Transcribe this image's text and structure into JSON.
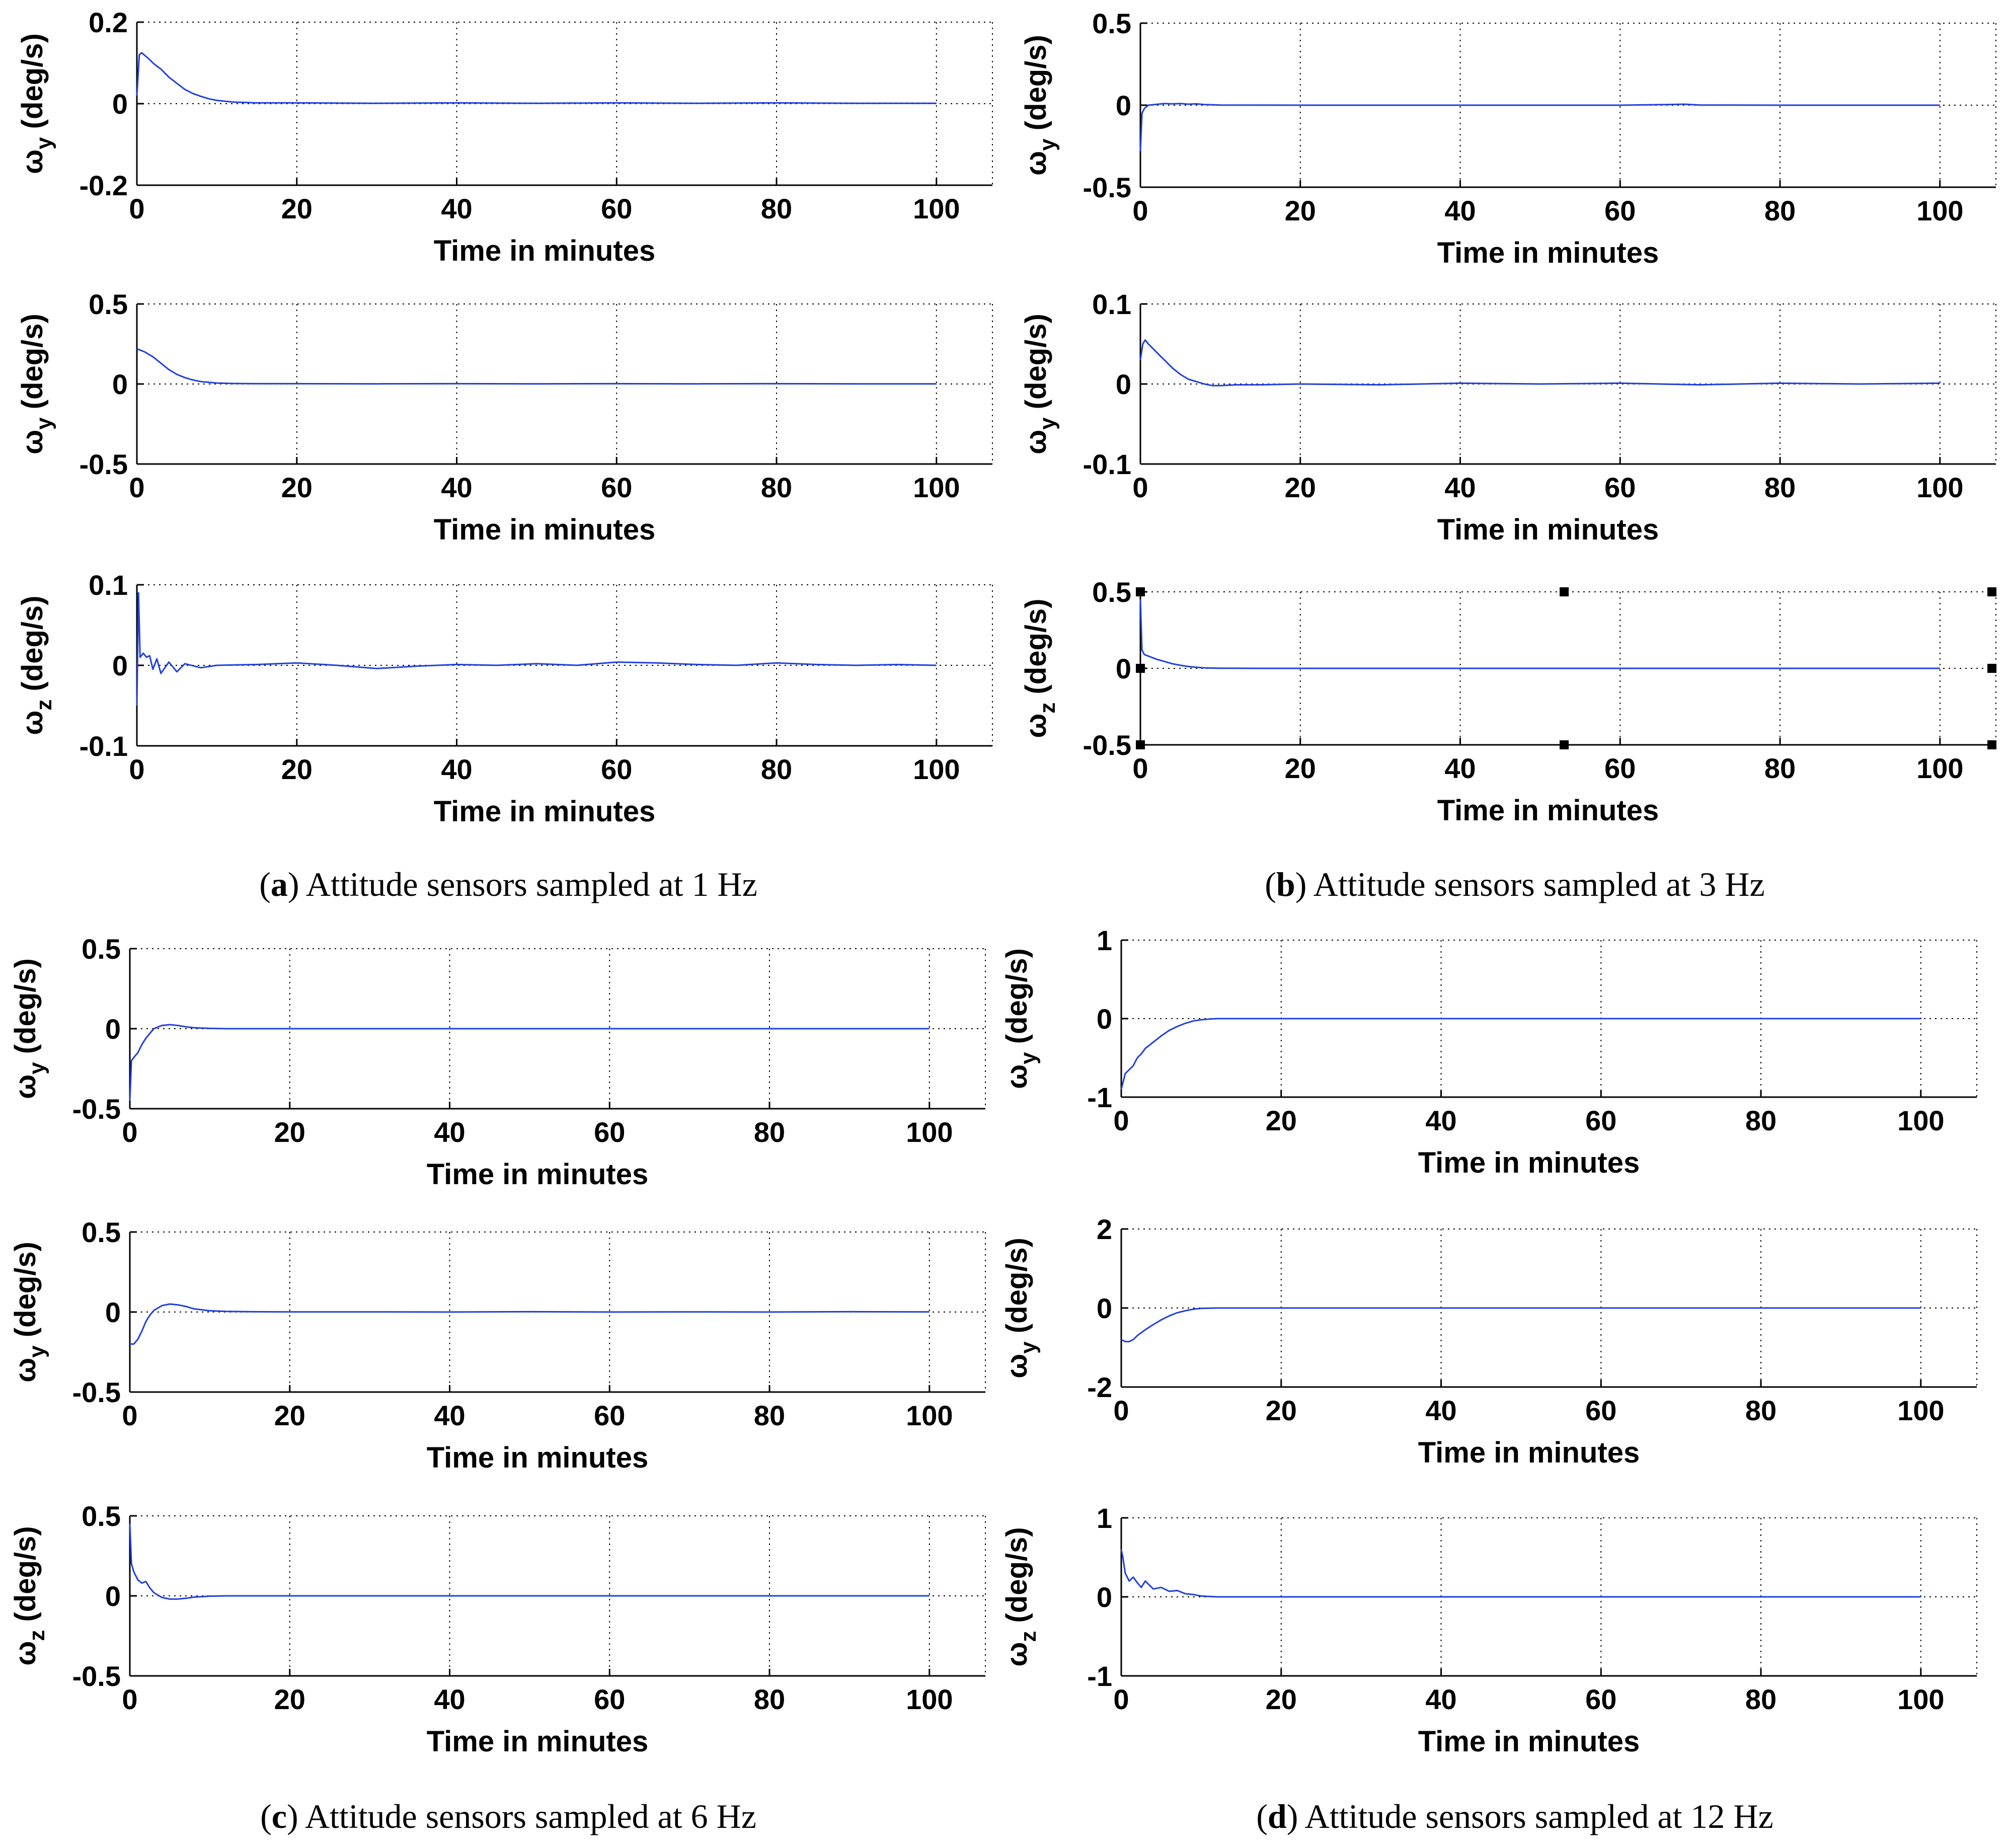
{
  "figure": {
    "captions": [
      {
        "letter": "a",
        "text": "Attitude sensors sampled at 1 Hz"
      },
      {
        "letter": "b",
        "text": "Attitude sensors sampled at 3 Hz"
      },
      {
        "letter": "c",
        "text": "Attitude sensors sampled at 6 Hz"
      },
      {
        "letter": "d",
        "text": "Attitude sensors sampled at 12 Hz"
      }
    ]
  },
  "chart_data": [
    {
      "type": "line",
      "panel": "a",
      "row": 1,
      "title": "",
      "xlabel": "Time in minutes",
      "ylabel": "ω_y (deg/s)",
      "ylabel_symbol": "ω",
      "ylabel_sub": "y",
      "ylabel_unit": "(deg/s)",
      "xlim": [
        0,
        107
      ],
      "ylim": [
        -0.2,
        0.2
      ],
      "xticks": [
        "0",
        "20",
        "40",
        "60",
        "80",
        "100"
      ],
      "yticks": [
        "0.2",
        "0",
        "-0.2"
      ],
      "grid": true,
      "series": [
        {
          "color": "#1f3fe0",
          "x": [
            0,
            0.3,
            0.6,
            1,
            1.5,
            2,
            2.5,
            3,
            4,
            5,
            6,
            7,
            8,
            9,
            10,
            12,
            15,
            20,
            30,
            40,
            50,
            60,
            70,
            80,
            90,
            100
          ],
          "y": [
            0.02,
            0.12,
            0.125,
            0.118,
            0.11,
            0.1,
            0.092,
            0.085,
            0.065,
            0.05,
            0.035,
            0.025,
            0.018,
            0.012,
            0.008,
            0.004,
            0.002,
            0.002,
            0.001,
            0.002,
            0.001,
            0.002,
            0.001,
            0.002,
            0.001,
            0.001
          ]
        }
      ]
    },
    {
      "type": "line",
      "panel": "a",
      "row": 2,
      "title": "",
      "xlabel": "Time in minutes",
      "ylabel": "ω_y (deg/s)",
      "ylabel_symbol": "ω",
      "ylabel_sub": "y",
      "ylabel_unit": "(deg/s)",
      "xlim": [
        0,
        107
      ],
      "ylim": [
        -0.5,
        0.5
      ],
      "xticks": [
        "0",
        "20",
        "40",
        "60",
        "80",
        "100"
      ],
      "yticks": [
        "0.5",
        "0",
        "-0.5"
      ],
      "grid": true,
      "series": [
        {
          "color": "#1f3fe0",
          "x": [
            0,
            0.5,
            1,
            2,
            3,
            4,
            5,
            6,
            7,
            8,
            10,
            12,
            15,
            20,
            30,
            40,
            50,
            60,
            70,
            80,
            90,
            100
          ],
          "y": [
            0.22,
            0.21,
            0.2,
            0.17,
            0.13,
            0.09,
            0.06,
            0.04,
            0.025,
            0.015,
            0.006,
            0.003,
            0.002,
            0.002,
            0.001,
            0.002,
            0.001,
            0.002,
            0.001,
            0.002,
            0.001,
            0.001
          ]
        }
      ]
    },
    {
      "type": "line",
      "panel": "a",
      "row": 3,
      "title": "",
      "xlabel": "Time in minutes",
      "ylabel": "ω_z (deg/s)",
      "ylabel_symbol": "ω",
      "ylabel_sub": "z",
      "ylabel_unit": "(deg/s)",
      "xlim": [
        0,
        107
      ],
      "ylim": [
        -0.1,
        0.1
      ],
      "xticks": [
        "0",
        "20",
        "40",
        "60",
        "80",
        "100"
      ],
      "yticks": [
        "0.1",
        "0",
        "-0.1"
      ],
      "grid": true,
      "series": [
        {
          "color": "#1f3fe0",
          "x": [
            0,
            0.2,
            0.4,
            0.8,
            1.2,
            1.6,
            2,
            2.5,
            3,
            4,
            5,
            6,
            8,
            10,
            15,
            20,
            25,
            30,
            35,
            40,
            45,
            50,
            55,
            60,
            65,
            70,
            75,
            80,
            85,
            90,
            95,
            100
          ],
          "y": [
            -0.05,
            0.09,
            0.01,
            0.015,
            0.01,
            0.012,
            -0.005,
            0.008,
            -0.01,
            0.004,
            -0.008,
            0.002,
            -0.003,
            0.0,
            0.001,
            0.003,
            0.0,
            -0.004,
            -0.001,
            0.001,
            0.0,
            0.002,
            0.0,
            0.004,
            0.003,
            0.001,
            0.0,
            0.003,
            0.001,
            0.0,
            0.001,
            0.0
          ]
        }
      ]
    },
    {
      "type": "line",
      "panel": "b",
      "row": 1,
      "title": "",
      "xlabel": "Time in minutes",
      "ylabel": "ω_y (deg/s)",
      "ylabel_symbol": "ω",
      "ylabel_sub": "y",
      "ylabel_unit": "(deg/s)",
      "xlim": [
        0,
        107
      ],
      "ylim": [
        -0.5,
        0.5
      ],
      "xticks": [
        "0",
        "20",
        "40",
        "60",
        "80",
        "100"
      ],
      "yticks": [
        "0.5",
        "0",
        "-0.5"
      ],
      "grid": true,
      "series": [
        {
          "color": "#1f3fe0",
          "x": [
            0,
            0.2,
            0.5,
            1,
            2,
            3,
            4,
            5,
            6,
            7,
            8,
            10,
            20,
            40,
            60,
            66,
            68,
            70,
            80,
            100
          ],
          "y": [
            -0.28,
            -0.05,
            -0.02,
            0.0,
            0.005,
            0.01,
            0.008,
            0.01,
            0.006,
            0.008,
            0.004,
            0.001,
            0.0,
            0.0,
            0.0,
            0.004,
            0.006,
            0.001,
            0.0,
            0.0
          ]
        }
      ]
    },
    {
      "type": "line",
      "panel": "b",
      "row": 2,
      "title": "",
      "xlabel": "Time in minutes",
      "ylabel": "ω_y (deg/s)",
      "ylabel_symbol": "ω",
      "ylabel_sub": "y",
      "ylabel_unit": "(deg/s)",
      "xlim": [
        0,
        107
      ],
      "ylim": [
        -0.1,
        0.1
      ],
      "xticks": [
        "0",
        "20",
        "40",
        "60",
        "80",
        "100"
      ],
      "yticks": [
        "0.1",
        "0",
        "-0.1"
      ],
      "grid": true,
      "series": [
        {
          "color": "#1f3fe0",
          "x": [
            0,
            0.3,
            0.6,
            1,
            1.5,
            2,
            2.5,
            3,
            4,
            5,
            6,
            7,
            8,
            9,
            10,
            12,
            15,
            20,
            30,
            40,
            50,
            60,
            70,
            80,
            90,
            100
          ],
          "y": [
            0.03,
            0.05,
            0.055,
            0.05,
            0.045,
            0.04,
            0.035,
            0.03,
            0.02,
            0.012,
            0.006,
            0.003,
            0.0,
            -0.002,
            -0.002,
            -0.001,
            -0.001,
            0.0,
            -0.001,
            0.001,
            0.0,
            0.001,
            -0.001,
            0.001,
            0.0,
            0.001
          ]
        }
      ]
    },
    {
      "type": "line",
      "panel": "b",
      "row": 3,
      "title": "",
      "xlabel": "Time in minutes",
      "ylabel": "ω_z (deg/s)",
      "ylabel_symbol": "ω",
      "ylabel_sub": "z",
      "ylabel_unit": "(deg/s)",
      "xlim": [
        0,
        107
      ],
      "ylim": [
        -0.5,
        0.5
      ],
      "xticks": [
        "0",
        "20",
        "40",
        "60",
        "80",
        "100"
      ],
      "yticks": [
        "0.5",
        "0",
        "-0.5"
      ],
      "grid": true,
      "series": [
        {
          "color": "#1f3fe0",
          "x": [
            0,
            0.2,
            0.5,
            1,
            2,
            3,
            4,
            5,
            6,
            7,
            8,
            10,
            15,
            20,
            100
          ],
          "y": [
            0.45,
            0.12,
            0.09,
            0.08,
            0.06,
            0.045,
            0.03,
            0.02,
            0.012,
            0.007,
            0.003,
            0.001,
            0.0,
            0.0,
            0.0
          ]
        }
      ],
      "markers": [
        {
          "x": 0,
          "y": 0.5
        },
        {
          "x": 53,
          "y": 0.5
        },
        {
          "x": 106.5,
          "y": 0.5
        },
        {
          "x": 0,
          "y": 0
        },
        {
          "x": 106.5,
          "y": 0
        },
        {
          "x": 0,
          "y": -0.5
        },
        {
          "x": 53,
          "y": -0.5
        },
        {
          "x": 106.5,
          "y": -0.5
        }
      ]
    },
    {
      "type": "line",
      "panel": "c",
      "row": 1,
      "title": "",
      "xlabel": "Time in minutes",
      "ylabel": "ω_y (deg/s)",
      "ylabel_symbol": "ω",
      "ylabel_sub": "y",
      "ylabel_unit": "(deg/s)",
      "xlim": [
        0,
        107
      ],
      "ylim": [
        -0.5,
        0.5
      ],
      "xticks": [
        "0",
        "20",
        "40",
        "60",
        "80",
        "100"
      ],
      "yticks": [
        "0.5",
        "0",
        "-0.5"
      ],
      "grid": true,
      "series": [
        {
          "color": "#1f3fe0",
          "x": [
            0,
            0.2,
            0.5,
            1,
            1.5,
            2,
            2.5,
            3,
            4,
            5,
            6,
            7,
            8,
            10,
            12,
            15,
            20,
            100
          ],
          "y": [
            -0.45,
            -0.2,
            -0.18,
            -0.15,
            -0.1,
            -0.06,
            -0.03,
            0.0,
            0.02,
            0.025,
            0.02,
            0.012,
            0.006,
            0.002,
            0.0,
            0.0,
            0.0,
            0.0
          ]
        }
      ]
    },
    {
      "type": "line",
      "panel": "c",
      "row": 2,
      "title": "",
      "xlabel": "Time in minutes",
      "ylabel": "ω_y (deg/s)",
      "ylabel_symbol": "ω",
      "ylabel_sub": "y",
      "ylabel_unit": "(deg/s)",
      "xlim": [
        0,
        107
      ],
      "ylim": [
        -0.5,
        0.5
      ],
      "xticks": [
        "0",
        "20",
        "40",
        "60",
        "80",
        "100"
      ],
      "yticks": [
        "0.5",
        "0",
        "-0.5"
      ],
      "grid": true,
      "series": [
        {
          "color": "#1f3fe0",
          "x": [
            0,
            0.5,
            1,
            1.5,
            2,
            2.5,
            3,
            4,
            5,
            6,
            7,
            8,
            10,
            12,
            15,
            20,
            30,
            40,
            50,
            60,
            70,
            80,
            90,
            100
          ],
          "y": [
            -0.2,
            -0.2,
            -0.17,
            -0.12,
            -0.06,
            -0.02,
            0.01,
            0.04,
            0.05,
            0.045,
            0.035,
            0.02,
            0.008,
            0.004,
            0.002,
            0.001,
            0.001,
            0.0,
            0.002,
            0.0,
            0.001,
            0.0,
            0.002,
            0.001
          ]
        }
      ]
    },
    {
      "type": "line",
      "panel": "c",
      "row": 3,
      "title": "",
      "xlabel": "Time in minutes",
      "ylabel": "ω_z (deg/s)",
      "ylabel_symbol": "ω",
      "ylabel_sub": "z",
      "ylabel_unit": "(deg/s)",
      "xlim": [
        0,
        107
      ],
      "ylim": [
        -0.5,
        0.5
      ],
      "xticks": [
        "0",
        "20",
        "40",
        "60",
        "80",
        "100"
      ],
      "yticks": [
        "0.5",
        "0",
        "-0.5"
      ],
      "grid": true,
      "series": [
        {
          "color": "#1f3fe0",
          "x": [
            0,
            0.2,
            0.5,
            1,
            1.5,
            2,
            2.5,
            3,
            4,
            5,
            6,
            7,
            8,
            10,
            12,
            15,
            20,
            100
          ],
          "y": [
            0.45,
            0.2,
            0.15,
            0.1,
            0.08,
            0.09,
            0.05,
            0.02,
            -0.01,
            -0.02,
            -0.02,
            -0.015,
            -0.008,
            -0.002,
            0.0,
            0.0,
            0.0,
            0.0
          ]
        }
      ]
    },
    {
      "type": "line",
      "panel": "d",
      "row": 1,
      "title": "",
      "xlabel": "Time in minutes",
      "ylabel": "ω_y (deg/s)",
      "ylabel_symbol": "ω",
      "ylabel_sub": "y",
      "ylabel_unit": "(deg/s)",
      "xlim": [
        0,
        107
      ],
      "ylim": [
        -1,
        1
      ],
      "xticks": [
        "0",
        "20",
        "40",
        "60",
        "80",
        "100"
      ],
      "yticks": [
        "1",
        "0",
        "-1"
      ],
      "grid": true,
      "series": [
        {
          "color": "#1f3fe0",
          "x": [
            0,
            0.5,
            1,
            1.5,
            2,
            2.5,
            3,
            4,
            5,
            6,
            7,
            8,
            9,
            10,
            11,
            12,
            15,
            20,
            100
          ],
          "y": [
            -0.9,
            -0.7,
            -0.65,
            -0.6,
            -0.5,
            -0.45,
            -0.38,
            -0.3,
            -0.22,
            -0.15,
            -0.1,
            -0.06,
            -0.03,
            -0.015,
            -0.006,
            0.0,
            0.0,
            0.0,
            0.0
          ]
        }
      ]
    },
    {
      "type": "line",
      "panel": "d",
      "row": 2,
      "title": "",
      "xlabel": "Time in minutes",
      "ylabel": "ω_y (deg/s)",
      "ylabel_symbol": "ω",
      "ylabel_sub": "y",
      "ylabel_unit": "(deg/s)",
      "xlim": [
        0,
        107
      ],
      "ylim": [
        -2,
        2
      ],
      "xticks": [
        "0",
        "20",
        "40",
        "60",
        "80",
        "100"
      ],
      "yticks": [
        "2",
        "0",
        "-2"
      ],
      "grid": true,
      "series": [
        {
          "color": "#1f3fe0",
          "x": [
            0,
            0.5,
            1,
            1.5,
            2,
            3,
            4,
            5,
            6,
            7,
            8,
            9,
            10,
            12,
            15,
            20,
            100
          ],
          "y": [
            -0.8,
            -0.85,
            -0.85,
            -0.8,
            -0.7,
            -0.55,
            -0.42,
            -0.3,
            -0.2,
            -0.12,
            -0.07,
            -0.03,
            -0.01,
            0.0,
            0.0,
            0.0,
            0.0
          ]
        }
      ]
    },
    {
      "type": "line",
      "panel": "d",
      "row": 3,
      "title": "",
      "xlabel": "Time in minutes",
      "ylabel": "ω_z (deg/s)",
      "ylabel_symbol": "ω",
      "ylabel_sub": "z",
      "ylabel_unit": "(deg/s)",
      "xlim": [
        0,
        107
      ],
      "ylim": [
        -1,
        1
      ],
      "xticks": [
        "0",
        "20",
        "40",
        "60",
        "80",
        "100"
      ],
      "yticks": [
        "1",
        "0",
        "-1"
      ],
      "grid": true,
      "series": [
        {
          "color": "#1f3fe0",
          "x": [
            0,
            0.2,
            0.5,
            1,
            1.5,
            2,
            2.5,
            3,
            3.5,
            4,
            5,
            6,
            7,
            8,
            9,
            10,
            12,
            15,
            20,
            100
          ],
          "y": [
            0.6,
            0.5,
            0.3,
            0.2,
            0.25,
            0.18,
            0.12,
            0.2,
            0.15,
            0.1,
            0.12,
            0.07,
            0.08,
            0.04,
            0.03,
            0.01,
            0.0,
            0.0,
            0.0,
            0.0
          ]
        }
      ]
    }
  ]
}
